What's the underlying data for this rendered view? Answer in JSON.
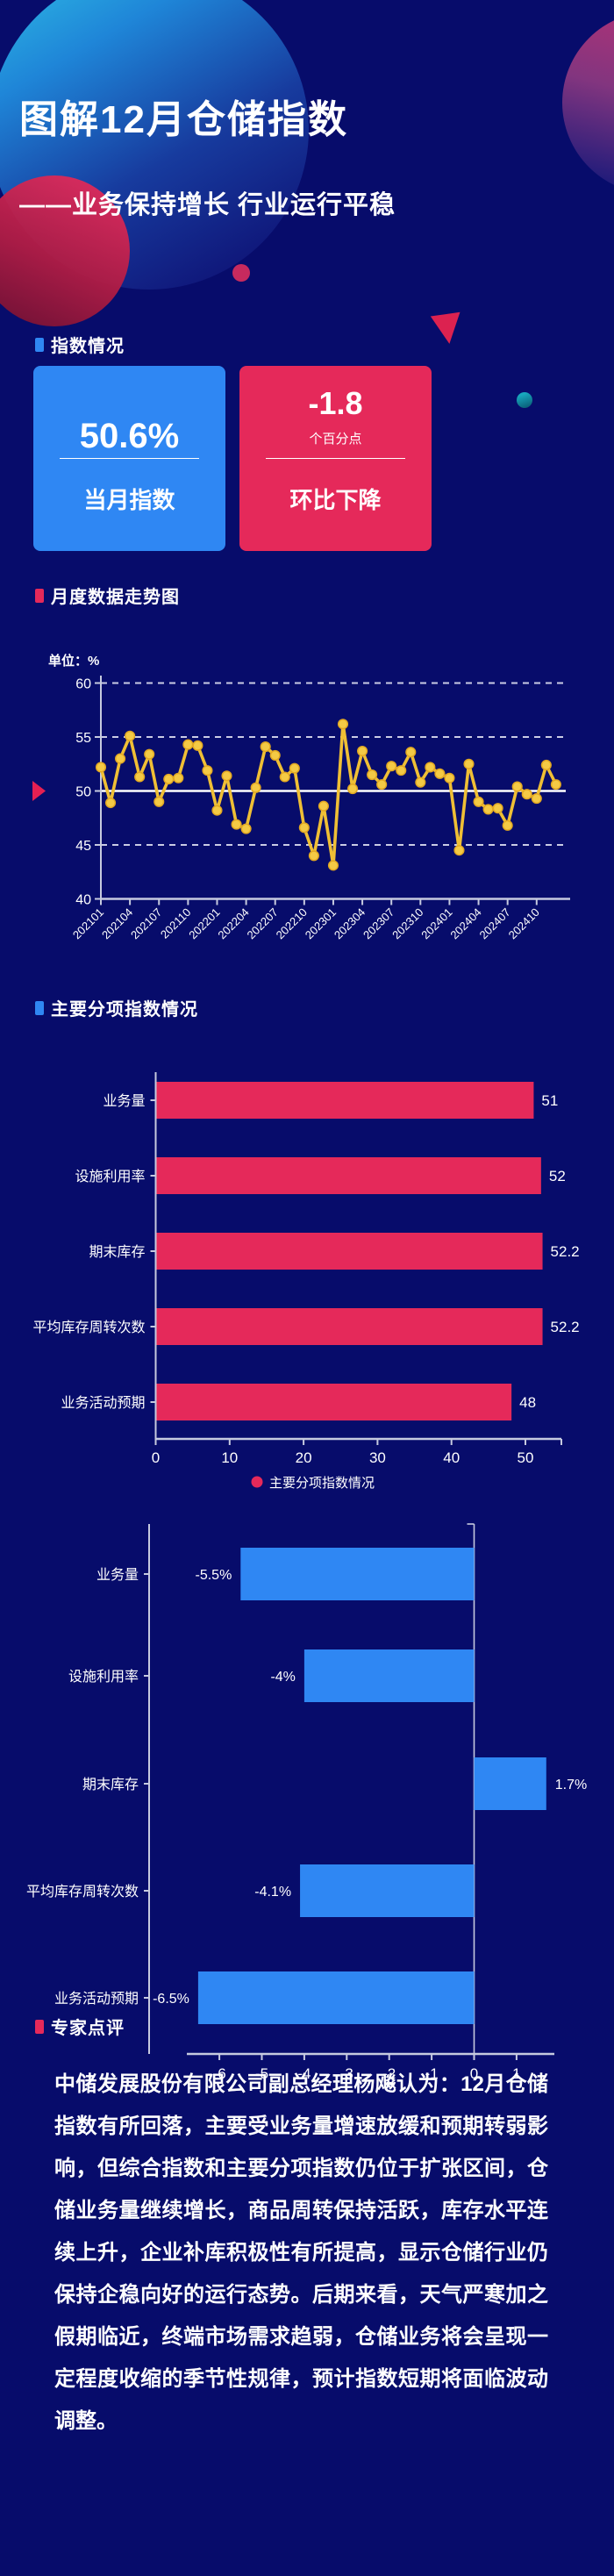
{
  "header": {
    "title": "图解12月仓储指数",
    "subtitle": "——业务保持增长 行业运行平稳"
  },
  "sections": {
    "index_status": "指数情况",
    "monthly_trend": "月度数据走势图",
    "sub_index": "主要分项指数情况",
    "expert_comment": "专家点评"
  },
  "cards": {
    "current": {
      "value": "50.6%",
      "label": "当月指数"
    },
    "change": {
      "value": "-1.8",
      "unit": "个百分点",
      "label": "环比下降"
    }
  },
  "colors": {
    "background": "#070c6b",
    "blue": "#2f87f3",
    "crimson": "#e5295a",
    "gold_line": "#efbf35",
    "gold_marker": "#f4ca45",
    "axis": "#c6cadf",
    "reference_line": "#ffffff"
  },
  "chart_data": [
    {
      "type": "line",
      "title": "月度数据走势图",
      "unit_label": "单位：%",
      "x": [
        "202101",
        "202102",
        "202103",
        "202104",
        "202105",
        "202106",
        "202107",
        "202108",
        "202109",
        "202110",
        "202111",
        "202112",
        "202201",
        "202202",
        "202203",
        "202204",
        "202205",
        "202206",
        "202207",
        "202208",
        "202209",
        "202210",
        "202211",
        "202212",
        "202301",
        "202302",
        "202303",
        "202304",
        "202305",
        "202306",
        "202307",
        "202308",
        "202309",
        "202310",
        "202311",
        "202312",
        "202401",
        "202402",
        "202403",
        "202404",
        "202405",
        "202406",
        "202407",
        "202408",
        "202409",
        "202410",
        "202411",
        "202412"
      ],
      "values": [
        52.2,
        48.9,
        53.0,
        55.1,
        51.3,
        53.4,
        49.0,
        51.1,
        51.2,
        54.3,
        54.2,
        51.9,
        48.2,
        51.4,
        46.9,
        46.5,
        50.3,
        54.1,
        53.3,
        51.3,
        52.1,
        46.6,
        44.0,
        48.6,
        43.1,
        56.2,
        50.2,
        53.7,
        51.5,
        50.6,
        52.3,
        51.9,
        53.6,
        50.8,
        52.2,
        51.6,
        51.2,
        44.5,
        52.5,
        49.0,
        48.3,
        48.4,
        46.8,
        50.4,
        49.7,
        49.3,
        52.4,
        50.6
      ],
      "x_tick_labels": [
        "202101",
        "202104",
        "202107",
        "202110",
        "202201",
        "202204",
        "202207",
        "202210",
        "202301",
        "202304",
        "202307",
        "202310",
        "202401",
        "202404",
        "202407",
        "202410"
      ],
      "yticks": [
        40,
        45,
        50,
        55,
        60
      ],
      "ylim": [
        40,
        60
      ],
      "reference_line": 50,
      "grid": "dashed horizontal, solid white line at 50",
      "legend_position": "none"
    },
    {
      "type": "bar",
      "orientation": "horizontal",
      "categories": [
        "业务量",
        "设施利用率",
        "期末库存",
        "平均库存周转次数",
        "业务活动预期"
      ],
      "values": [
        51,
        52,
        52.2,
        52.2,
        48
      ],
      "value_labels": [
        "51",
        "52",
        "52.2",
        "52.2",
        "48"
      ],
      "xticks": [
        0,
        10,
        20,
        30,
        40,
        50
      ],
      "xlim": [
        0,
        55
      ],
      "legend": "主要分项指数情况",
      "legend_position": "bottom center"
    },
    {
      "type": "bar",
      "orientation": "horizontal",
      "categories": [
        "业务量",
        "设施利用率",
        "期末库存",
        "平均库存周转次数",
        "业务活动预期"
      ],
      "values": [
        -5.5,
        -4,
        1.7,
        -4.1,
        -6.5
      ],
      "value_labels": [
        "-5.5%",
        "-4%",
        "1.7%",
        "-4.1%",
        "-6.5%"
      ],
      "xticks": [
        -6,
        -5,
        -4,
        -3,
        -2,
        -1,
        0,
        1
      ],
      "xlim": [
        -6.8,
        1.9
      ],
      "legend_position": "none"
    }
  ],
  "expert": {
    "text": "中储发展股份有限公司副总经理杨飚认为：12月仓储指数有所回落，主要受业务量增速放缓和预期转弱影响，但综合指数和主要分项指数仍位于扩张区间，仓储业务量继续增长，商品周转保持活跃，库存水平连续上升，企业补库积极性有所提高，显示仓储行业仍保持企稳向好的运行态势。后期来看，天气严寒加之假期临近，终端市场需求趋弱，仓储业务将会呈现一定程度收缩的季节性规律，预计指数短期将面临波动调整。"
  }
}
